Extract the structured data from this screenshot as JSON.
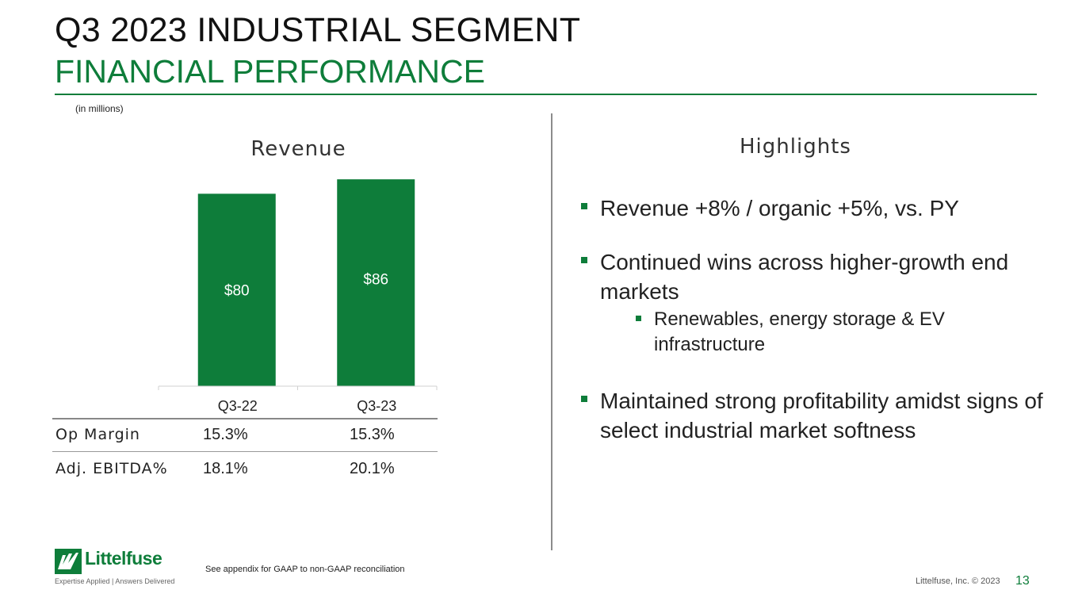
{
  "header": {
    "title": "Q3 2023 INDUSTRIAL SEGMENT",
    "subtitle": "FINANCIAL PERFORMANCE",
    "units_note": "(in millions)"
  },
  "chart_data": {
    "type": "bar",
    "title": "Revenue",
    "categories": [
      "Q3-22",
      "Q3-23"
    ],
    "values": [
      80,
      86
    ],
    "value_labels": [
      "$80",
      "$86"
    ],
    "xlabel": "",
    "ylabel": "",
    "ylim": [
      0,
      90
    ],
    "grid": false,
    "bar_color": "#0e7d3a",
    "label_color": "#ffffff"
  },
  "metrics": {
    "rows": [
      {
        "label": "Op Margin",
        "q3_22": "15.3%",
        "q3_23": "15.3%"
      },
      {
        "label": "Adj. EBITDA%",
        "q3_22": "18.1%",
        "q3_23": "20.1%"
      }
    ]
  },
  "highlights": {
    "heading": "Highlights",
    "items": [
      "Revenue +8% / organic +5%, vs. PY",
      "Continued wins across higher-growth end markets",
      "Renewables, energy storage & EV infrastructure",
      "Maintained strong profitability amidst signs of select industrial market softness"
    ]
  },
  "footer": {
    "note": "See appendix for GAAP to non-GAAP reconciliation",
    "brand": "Littelfuse",
    "tagline": "Expertise Applied | Answers Delivered",
    "copyright": "Littelfuse, Inc. © 2023",
    "page": "13"
  },
  "colors": {
    "accent": "#0e7d3a",
    "text": "#222222"
  }
}
